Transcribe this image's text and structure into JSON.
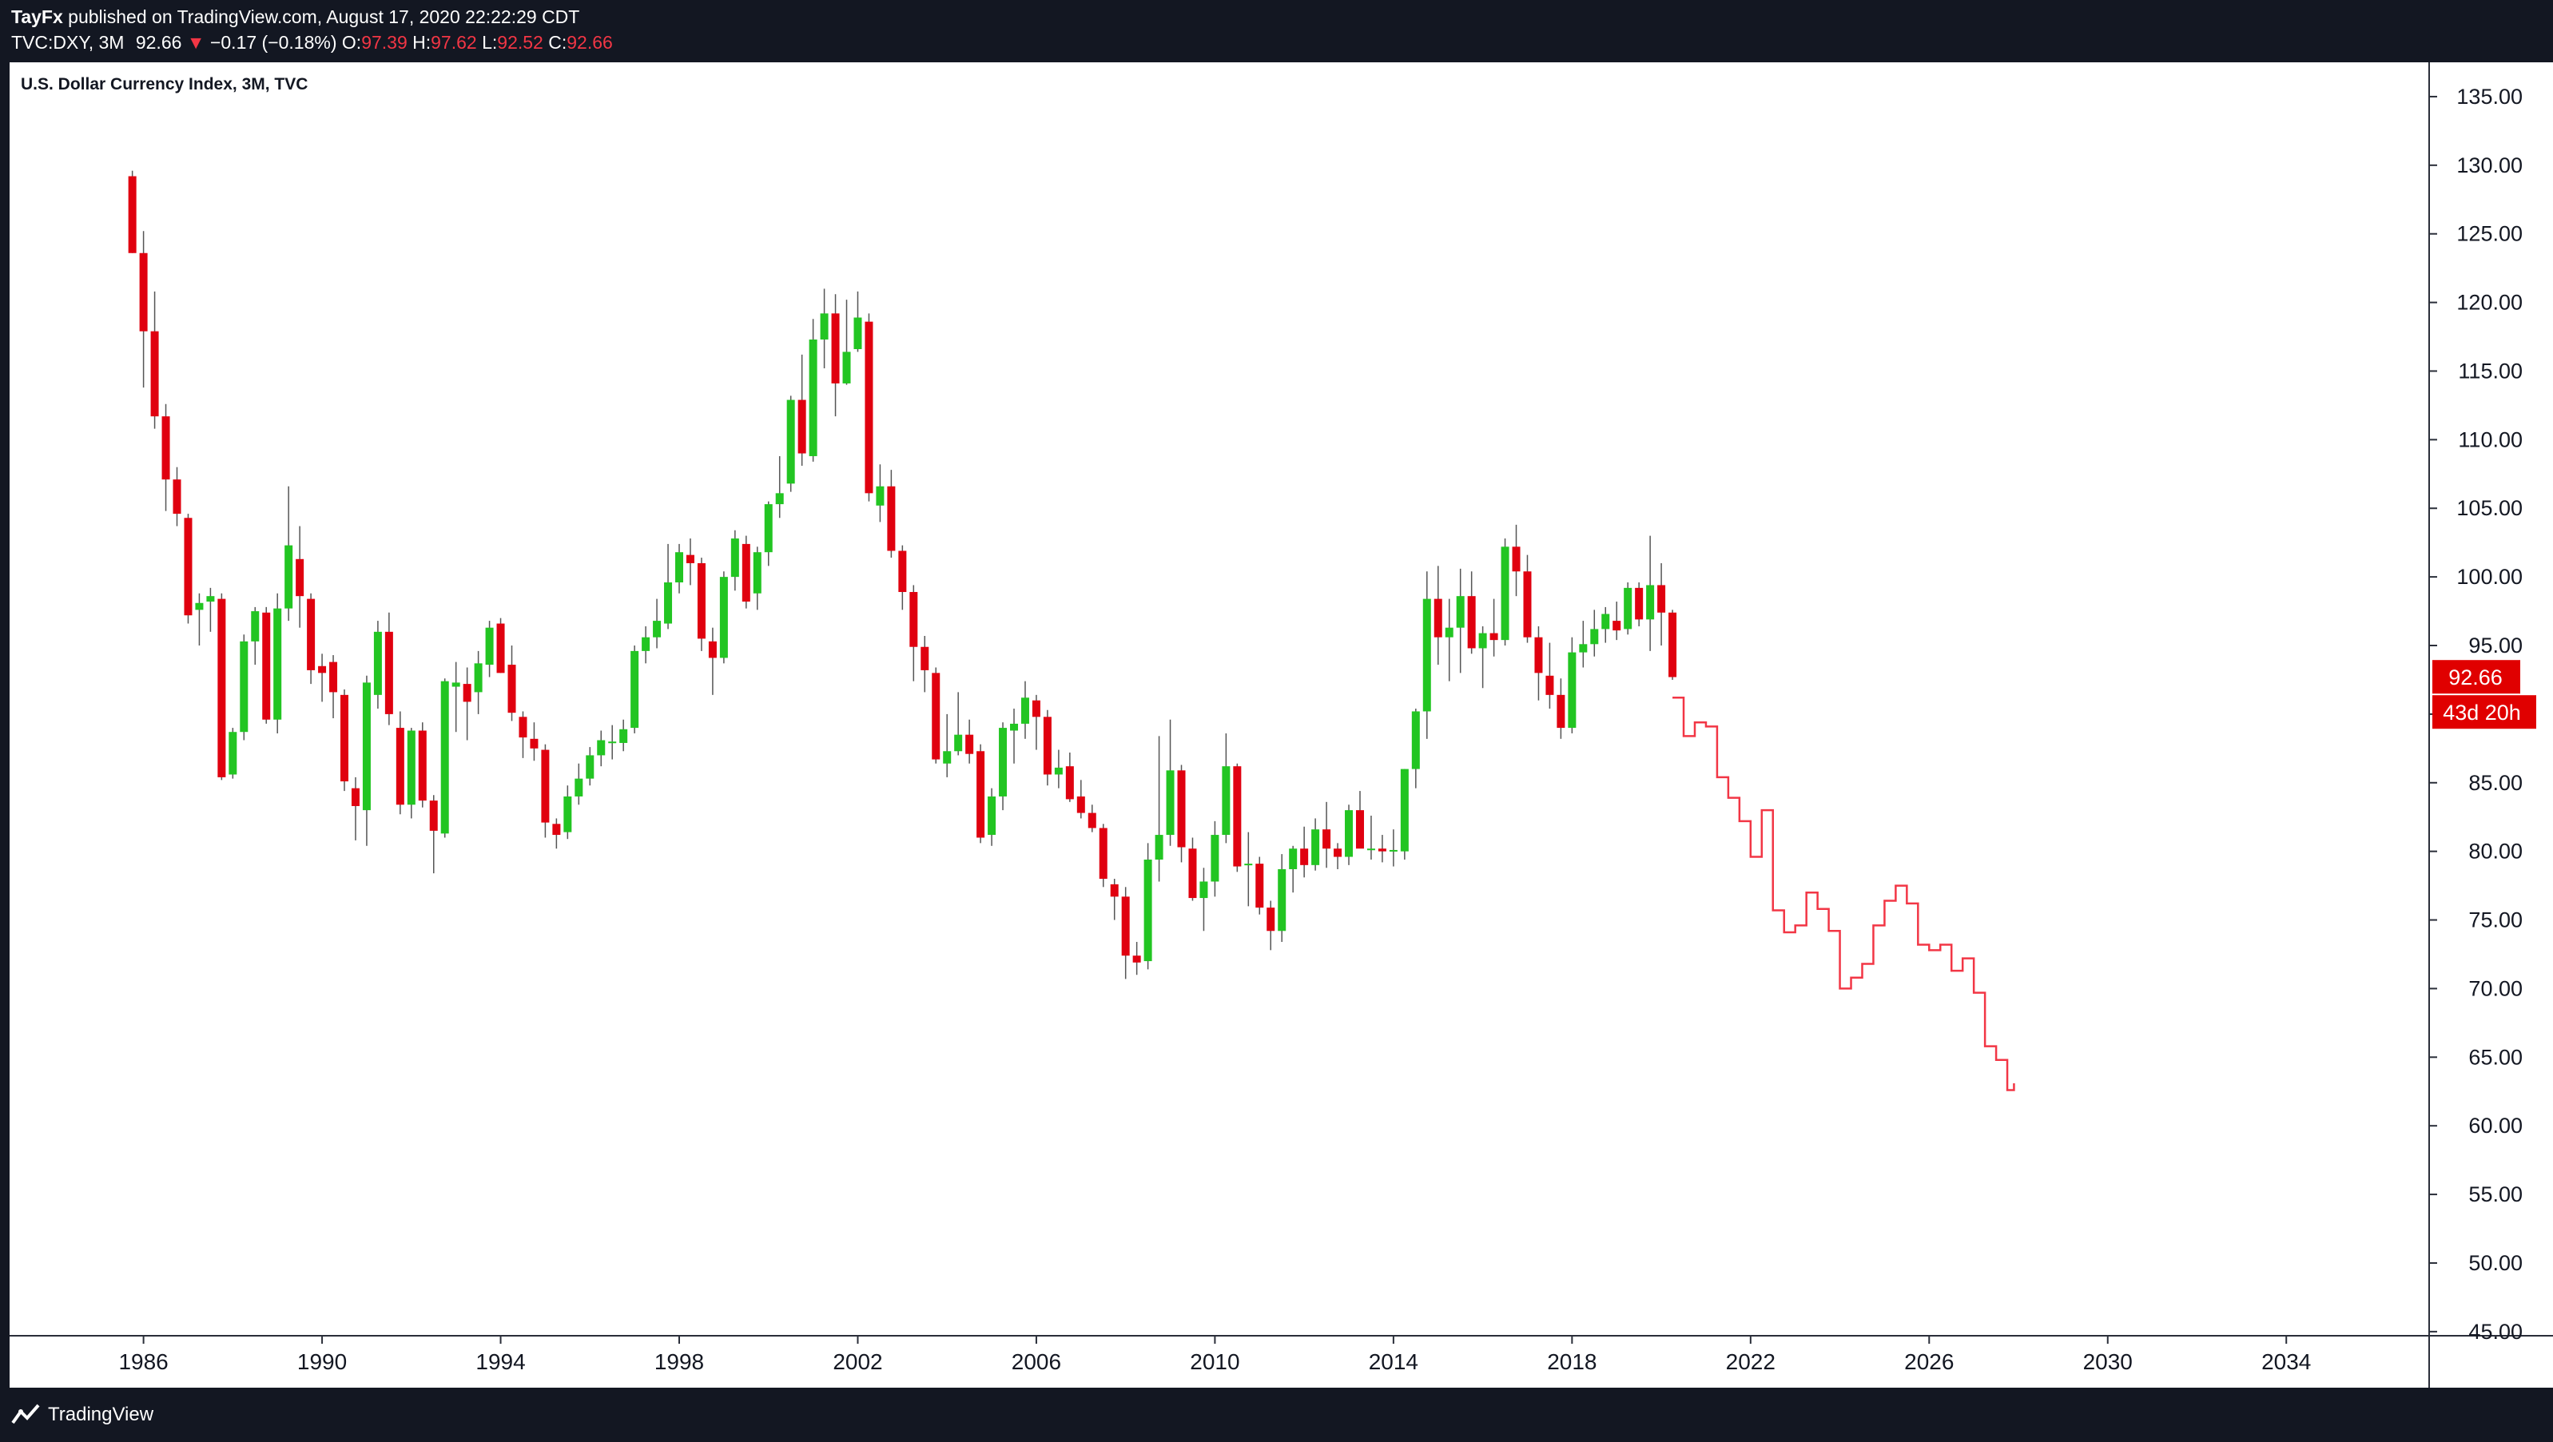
{
  "header": {
    "author": "TayFx",
    "published_text": "published on TradingView.com, August 17, 2020 22:22:29 CDT",
    "symbol": "TVC:DXY, 3M",
    "last": "92.66",
    "change": "−0.17 (−0.18%)",
    "open_label": "O:",
    "open": "97.39",
    "high_label": "H:",
    "high": "97.62",
    "low_label": "L:",
    "low": "92.52",
    "close_label": "C:",
    "close": "92.66"
  },
  "footer": {
    "brand": "TradingView"
  },
  "chart_data": {
    "type": "candlestick",
    "title": "U.S. Dollar Currency Index, 3M, TVC",
    "x_axis": {
      "ticks": [
        "1986",
        "1990",
        "1994",
        "1998",
        "2002",
        "2006",
        "2010",
        "2014",
        "2018",
        "2022",
        "2026",
        "2030",
        "2034"
      ],
      "range": [
        1983.0,
        2037.2
      ]
    },
    "y_axis": {
      "ticks": [
        "45.00",
        "50.00",
        "55.00",
        "60.00",
        "65.00",
        "70.00",
        "75.00",
        "80.00",
        "85.00",
        "90.00",
        "95.00",
        "100.00",
        "105.00",
        "110.00",
        "115.00",
        "120.00",
        "125.00",
        "130.00",
        "135.00"
      ],
      "range": [
        44.7,
        137.5
      ],
      "side": "right"
    },
    "price_label": "92.66",
    "countdown_label": "43d 20h",
    "colors": {
      "up": "#22c522",
      "down": "#e0000f",
      "projection": "#f23645",
      "wick": "#555555",
      "price_label_bg": "#e00000"
    },
    "candles": [
      {
        "t": 1985.75,
        "o": 129.2,
        "h": 129.6,
        "l": 123.6,
        "c": 123.6
      },
      {
        "t": 1986.0,
        "o": 123.6,
        "h": 125.2,
        "l": 113.8,
        "c": 117.9
      },
      {
        "t": 1986.25,
        "o": 117.9,
        "h": 120.8,
        "l": 110.8,
        "c": 111.7
      },
      {
        "t": 1986.5,
        "o": 111.7,
        "h": 112.6,
        "l": 104.8,
        "c": 107.1
      },
      {
        "t": 1986.75,
        "o": 107.1,
        "h": 108.0,
        "l": 103.7,
        "c": 104.6
      },
      {
        "t": 1987.0,
        "o": 104.3,
        "h": 104.6,
        "l": 96.6,
        "c": 97.2
      },
      {
        "t": 1987.25,
        "o": 97.6,
        "h": 98.8,
        "l": 95.0,
        "c": 98.1
      },
      {
        "t": 1987.5,
        "o": 98.2,
        "h": 99.2,
        "l": 96.0,
        "c": 98.6
      },
      {
        "t": 1987.75,
        "o": 98.4,
        "h": 98.8,
        "l": 85.2,
        "c": 85.4
      },
      {
        "t": 1988.0,
        "o": 85.6,
        "h": 89.0,
        "l": 85.3,
        "c": 88.7
      },
      {
        "t": 1988.25,
        "o": 88.7,
        "h": 95.8,
        "l": 88.1,
        "c": 95.3
      },
      {
        "t": 1988.5,
        "o": 95.3,
        "h": 97.8,
        "l": 93.6,
        "c": 97.5
      },
      {
        "t": 1988.75,
        "o": 97.4,
        "h": 97.8,
        "l": 89.3,
        "c": 89.6
      },
      {
        "t": 1989.0,
        "o": 89.6,
        "h": 98.8,
        "l": 88.6,
        "c": 97.7
      },
      {
        "t": 1989.25,
        "o": 97.7,
        "h": 106.6,
        "l": 96.8,
        "c": 102.3
      },
      {
        "t": 1989.5,
        "o": 101.3,
        "h": 103.7,
        "l": 96.3,
        "c": 98.6
      },
      {
        "t": 1989.75,
        "o": 98.4,
        "h": 98.8,
        "l": 92.2,
        "c": 93.2
      },
      {
        "t": 1990.0,
        "o": 93.5,
        "h": 94.4,
        "l": 90.9,
        "c": 93.0
      },
      {
        "t": 1990.25,
        "o": 93.8,
        "h": 94.3,
        "l": 89.7,
        "c": 91.6
      },
      {
        "t": 1990.5,
        "o": 91.4,
        "h": 91.8,
        "l": 84.4,
        "c": 85.1
      },
      {
        "t": 1990.75,
        "o": 84.6,
        "h": 85.4,
        "l": 80.8,
        "c": 83.3
      },
      {
        "t": 1991.0,
        "o": 83.0,
        "h": 92.8,
        "l": 80.4,
        "c": 92.3
      },
      {
        "t": 1991.25,
        "o": 91.4,
        "h": 96.8,
        "l": 90.4,
        "c": 96.0
      },
      {
        "t": 1991.5,
        "o": 96.0,
        "h": 97.4,
        "l": 89.2,
        "c": 90.0
      },
      {
        "t": 1991.75,
        "o": 89.0,
        "h": 90.2,
        "l": 82.7,
        "c": 83.4
      },
      {
        "t": 1992.0,
        "o": 83.4,
        "h": 89.0,
        "l": 82.4,
        "c": 88.8
      },
      {
        "t": 1992.25,
        "o": 88.8,
        "h": 89.4,
        "l": 83.2,
        "c": 83.7
      },
      {
        "t": 1992.5,
        "o": 83.7,
        "h": 84.1,
        "l": 78.4,
        "c": 81.5
      },
      {
        "t": 1992.75,
        "o": 81.3,
        "h": 92.6,
        "l": 81.0,
        "c": 92.4
      },
      {
        "t": 1993.0,
        "o": 92.0,
        "h": 93.8,
        "l": 88.7,
        "c": 92.3
      },
      {
        "t": 1993.25,
        "o": 92.2,
        "h": 93.4,
        "l": 88.1,
        "c": 90.9
      },
      {
        "t": 1993.5,
        "o": 91.6,
        "h": 94.6,
        "l": 90.0,
        "c": 93.7
      },
      {
        "t": 1993.75,
        "o": 93.6,
        "h": 96.8,
        "l": 92.7,
        "c": 96.3
      },
      {
        "t": 1994.0,
        "o": 96.6,
        "h": 97.0,
        "l": 93.0,
        "c": 93.0
      },
      {
        "t": 1994.25,
        "o": 93.6,
        "h": 95.0,
        "l": 89.5,
        "c": 90.1
      },
      {
        "t": 1994.5,
        "o": 89.8,
        "h": 90.2,
        "l": 86.8,
        "c": 88.3
      },
      {
        "t": 1994.75,
        "o": 88.2,
        "h": 89.4,
        "l": 86.6,
        "c": 87.5
      },
      {
        "t": 1995.0,
        "o": 87.4,
        "h": 87.8,
        "l": 81.0,
        "c": 82.1
      },
      {
        "t": 1995.25,
        "o": 82.0,
        "h": 82.4,
        "l": 80.2,
        "c": 81.2
      },
      {
        "t": 1995.5,
        "o": 81.4,
        "h": 84.8,
        "l": 80.9,
        "c": 84.0
      },
      {
        "t": 1995.75,
        "o": 84.0,
        "h": 86.4,
        "l": 83.4,
        "c": 85.3
      },
      {
        "t": 1996.0,
        "o": 85.3,
        "h": 87.6,
        "l": 84.8,
        "c": 87.0
      },
      {
        "t": 1996.25,
        "o": 87.0,
        "h": 88.8,
        "l": 86.2,
        "c": 88.1
      },
      {
        "t": 1996.5,
        "o": 87.9,
        "h": 89.2,
        "l": 86.7,
        "c": 88.0
      },
      {
        "t": 1996.75,
        "o": 87.9,
        "h": 89.6,
        "l": 87.3,
        "c": 88.9
      },
      {
        "t": 1997.0,
        "o": 89.0,
        "h": 95.0,
        "l": 88.6,
        "c": 94.6
      },
      {
        "t": 1997.25,
        "o": 94.6,
        "h": 96.4,
        "l": 93.7,
        "c": 95.6
      },
      {
        "t": 1997.5,
        "o": 95.6,
        "h": 98.4,
        "l": 94.8,
        "c": 96.8
      },
      {
        "t": 1997.75,
        "o": 96.6,
        "h": 102.4,
        "l": 96.2,
        "c": 99.6
      },
      {
        "t": 1998.0,
        "o": 99.6,
        "h": 102.4,
        "l": 98.8,
        "c": 101.8
      },
      {
        "t": 1998.25,
        "o": 101.6,
        "h": 102.8,
        "l": 99.4,
        "c": 101.0
      },
      {
        "t": 1998.5,
        "o": 101.0,
        "h": 101.4,
        "l": 94.6,
        "c": 95.5
      },
      {
        "t": 1998.75,
        "o": 95.3,
        "h": 96.3,
        "l": 91.4,
        "c": 94.1
      },
      {
        "t": 1999.0,
        "o": 94.1,
        "h": 100.4,
        "l": 93.7,
        "c": 100.0
      },
      {
        "t": 1999.25,
        "o": 100.0,
        "h": 103.4,
        "l": 99.0,
        "c": 102.8
      },
      {
        "t": 1999.5,
        "o": 102.4,
        "h": 103.0,
        "l": 97.7,
        "c": 98.2
      },
      {
        "t": 1999.75,
        "o": 98.8,
        "h": 102.2,
        "l": 97.6,
        "c": 101.8
      },
      {
        "t": 2000.0,
        "o": 101.8,
        "h": 105.5,
        "l": 100.8,
        "c": 105.3
      },
      {
        "t": 2000.25,
        "o": 105.3,
        "h": 108.8,
        "l": 104.3,
        "c": 106.1
      },
      {
        "t": 2000.5,
        "o": 106.8,
        "h": 113.2,
        "l": 106.2,
        "c": 112.9
      },
      {
        "t": 2000.75,
        "o": 112.9,
        "h": 116.2,
        "l": 108.1,
        "c": 109.0
      },
      {
        "t": 2001.0,
        "o": 108.8,
        "h": 118.8,
        "l": 108.4,
        "c": 117.3
      },
      {
        "t": 2001.25,
        "o": 117.3,
        "h": 121.0,
        "l": 115.2,
        "c": 119.2
      },
      {
        "t": 2001.5,
        "o": 119.2,
        "h": 120.6,
        "l": 111.7,
        "c": 114.1
      },
      {
        "t": 2001.75,
        "o": 114.1,
        "h": 120.2,
        "l": 114.0,
        "c": 116.4
      },
      {
        "t": 2002.0,
        "o": 116.6,
        "h": 120.8,
        "l": 116.4,
        "c": 118.9
      },
      {
        "t": 2002.25,
        "o": 118.6,
        "h": 119.2,
        "l": 105.5,
        "c": 106.1
      },
      {
        "t": 2002.5,
        "o": 105.2,
        "h": 108.2,
        "l": 104.0,
        "c": 106.6
      },
      {
        "t": 2002.75,
        "o": 106.6,
        "h": 107.8,
        "l": 101.4,
        "c": 101.9
      },
      {
        "t": 2003.0,
        "o": 101.9,
        "h": 102.3,
        "l": 97.6,
        "c": 98.9
      },
      {
        "t": 2003.25,
        "o": 98.9,
        "h": 99.4,
        "l": 92.4,
        "c": 94.9
      },
      {
        "t": 2003.5,
        "o": 94.9,
        "h": 95.7,
        "l": 91.6,
        "c": 93.2
      },
      {
        "t": 2003.75,
        "o": 93.0,
        "h": 93.4,
        "l": 86.4,
        "c": 86.7
      },
      {
        "t": 2004.0,
        "o": 86.4,
        "h": 90.0,
        "l": 85.4,
        "c": 87.3
      },
      {
        "t": 2004.25,
        "o": 87.3,
        "h": 91.6,
        "l": 87.0,
        "c": 88.5
      },
      {
        "t": 2004.5,
        "o": 88.5,
        "h": 89.6,
        "l": 86.4,
        "c": 87.1
      },
      {
        "t": 2004.75,
        "o": 87.3,
        "h": 87.8,
        "l": 80.6,
        "c": 81.0
      },
      {
        "t": 2005.0,
        "o": 81.2,
        "h": 84.6,
        "l": 80.4,
        "c": 84.0
      },
      {
        "t": 2005.25,
        "o": 84.0,
        "h": 89.4,
        "l": 83.0,
        "c": 89.0
      },
      {
        "t": 2005.5,
        "o": 88.8,
        "h": 90.4,
        "l": 86.4,
        "c": 89.3
      },
      {
        "t": 2005.75,
        "o": 89.3,
        "h": 92.4,
        "l": 88.2,
        "c": 91.2
      },
      {
        "t": 2006.0,
        "o": 91.0,
        "h": 91.4,
        "l": 87.4,
        "c": 89.8
      },
      {
        "t": 2006.25,
        "o": 89.8,
        "h": 90.3,
        "l": 84.8,
        "c": 85.6
      },
      {
        "t": 2006.5,
        "o": 85.6,
        "h": 87.4,
        "l": 84.6,
        "c": 86.1
      },
      {
        "t": 2006.75,
        "o": 86.2,
        "h": 87.2,
        "l": 83.6,
        "c": 83.8
      },
      {
        "t": 2007.0,
        "o": 84.0,
        "h": 85.2,
        "l": 82.4,
        "c": 82.8
      },
      {
        "t": 2007.25,
        "o": 82.8,
        "h": 83.4,
        "l": 81.4,
        "c": 81.7
      },
      {
        "t": 2007.5,
        "o": 81.7,
        "h": 82.0,
        "l": 77.4,
        "c": 78.0
      },
      {
        "t": 2007.75,
        "o": 77.6,
        "h": 78.0,
        "l": 75.0,
        "c": 76.7
      },
      {
        "t": 2008.0,
        "o": 76.7,
        "h": 77.4,
        "l": 70.7,
        "c": 72.4
      },
      {
        "t": 2008.25,
        "o": 72.4,
        "h": 73.4,
        "l": 71.0,
        "c": 71.9
      },
      {
        "t": 2008.5,
        "o": 72.0,
        "h": 80.6,
        "l": 71.4,
        "c": 79.4
      },
      {
        "t": 2008.75,
        "o": 79.4,
        "h": 88.4,
        "l": 77.8,
        "c": 81.2
      },
      {
        "t": 2009.0,
        "o": 81.2,
        "h": 89.6,
        "l": 80.4,
        "c": 85.9
      },
      {
        "t": 2009.25,
        "o": 85.9,
        "h": 86.3,
        "l": 79.2,
        "c": 80.3
      },
      {
        "t": 2009.5,
        "o": 80.2,
        "h": 81.0,
        "l": 76.4,
        "c": 76.6
      },
      {
        "t": 2009.75,
        "o": 76.6,
        "h": 78.8,
        "l": 74.2,
        "c": 77.8
      },
      {
        "t": 2010.0,
        "o": 77.8,
        "h": 82.2,
        "l": 76.7,
        "c": 81.2
      },
      {
        "t": 2010.25,
        "o": 81.2,
        "h": 88.6,
        "l": 80.6,
        "c": 86.2
      },
      {
        "t": 2010.5,
        "o": 86.2,
        "h": 86.4,
        "l": 78.5,
        "c": 78.9
      },
      {
        "t": 2010.75,
        "o": 79.0,
        "h": 81.4,
        "l": 76.0,
        "c": 79.1
      },
      {
        "t": 2011.0,
        "o": 79.1,
        "h": 79.6,
        "l": 75.4,
        "c": 75.9
      },
      {
        "t": 2011.25,
        "o": 75.9,
        "h": 76.4,
        "l": 72.8,
        "c": 74.2
      },
      {
        "t": 2011.5,
        "o": 74.2,
        "h": 79.8,
        "l": 73.4,
        "c": 78.7
      },
      {
        "t": 2011.75,
        "o": 78.7,
        "h": 80.4,
        "l": 77.0,
        "c": 80.2
      },
      {
        "t": 2012.0,
        "o": 80.2,
        "h": 81.8,
        "l": 78.1,
        "c": 79.0
      },
      {
        "t": 2012.25,
        "o": 79.0,
        "h": 82.4,
        "l": 78.6,
        "c": 81.6
      },
      {
        "t": 2012.5,
        "o": 81.6,
        "h": 83.6,
        "l": 78.8,
        "c": 80.2
      },
      {
        "t": 2012.75,
        "o": 80.2,
        "h": 80.6,
        "l": 78.7,
        "c": 79.6
      },
      {
        "t": 2013.0,
        "o": 79.6,
        "h": 83.4,
        "l": 79.0,
        "c": 83.0
      },
      {
        "t": 2013.25,
        "o": 83.0,
        "h": 84.4,
        "l": 80.8,
        "c": 80.2
      },
      {
        "t": 2013.5,
        "o": 80.2,
        "h": 82.6,
        "l": 79.4,
        "c": 80.2
      },
      {
        "t": 2013.75,
        "o": 80.2,
        "h": 81.2,
        "l": 79.2,
        "c": 80.0
      },
      {
        "t": 2014.0,
        "o": 80.0,
        "h": 81.6,
        "l": 78.9,
        "c": 80.1
      },
      {
        "t": 2014.25,
        "o": 80.0,
        "h": 86.0,
        "l": 79.4,
        "c": 86.0
      },
      {
        "t": 2014.5,
        "o": 86.0,
        "h": 90.4,
        "l": 84.6,
        "c": 90.2
      },
      {
        "t": 2014.75,
        "o": 90.2,
        "h": 100.4,
        "l": 88.2,
        "c": 98.4
      },
      {
        "t": 2015.0,
        "o": 98.4,
        "h": 100.8,
        "l": 93.6,
        "c": 95.6
      },
      {
        "t": 2015.25,
        "o": 95.6,
        "h": 98.4,
        "l": 92.4,
        "c": 96.3
      },
      {
        "t": 2015.5,
        "o": 96.3,
        "h": 100.6,
        "l": 93.0,
        "c": 98.6
      },
      {
        "t": 2015.75,
        "o": 98.6,
        "h": 100.4,
        "l": 94.4,
        "c": 94.8
      },
      {
        "t": 2016.0,
        "o": 94.8,
        "h": 96.4,
        "l": 91.9,
        "c": 95.9
      },
      {
        "t": 2016.25,
        "o": 95.9,
        "h": 98.4,
        "l": 94.2,
        "c": 95.4
      },
      {
        "t": 2016.5,
        "o": 95.4,
        "h": 102.8,
        "l": 95.0,
        "c": 102.2
      },
      {
        "t": 2016.75,
        "o": 102.2,
        "h": 103.8,
        "l": 98.6,
        "c": 100.4
      },
      {
        "t": 2017.0,
        "o": 100.4,
        "h": 101.6,
        "l": 95.2,
        "c": 95.6
      },
      {
        "t": 2017.25,
        "o": 95.6,
        "h": 96.4,
        "l": 91.0,
        "c": 93.0
      },
      {
        "t": 2017.5,
        "o": 92.8,
        "h": 95.2,
        "l": 90.4,
        "c": 91.4
      },
      {
        "t": 2017.75,
        "o": 91.4,
        "h": 92.6,
        "l": 88.2,
        "c": 89.0
      },
      {
        "t": 2018.0,
        "o": 89.0,
        "h": 95.6,
        "l": 88.6,
        "c": 94.5
      },
      {
        "t": 2018.25,
        "o": 94.5,
        "h": 96.8,
        "l": 93.4,
        "c": 95.1
      },
      {
        "t": 2018.5,
        "o": 95.1,
        "h": 97.6,
        "l": 94.2,
        "c": 96.2
      },
      {
        "t": 2018.75,
        "o": 96.2,
        "h": 97.8,
        "l": 95.2,
        "c": 97.3
      },
      {
        "t": 2019.0,
        "o": 96.8,
        "h": 98.2,
        "l": 95.4,
        "c": 96.1
      },
      {
        "t": 2019.25,
        "o": 96.2,
        "h": 99.6,
        "l": 95.8,
        "c": 99.2
      },
      {
        "t": 2019.5,
        "o": 99.2,
        "h": 99.6,
        "l": 96.4,
        "c": 96.9
      },
      {
        "t": 2019.75,
        "o": 96.9,
        "h": 103.0,
        "l": 94.6,
        "c": 99.4
      },
      {
        "t": 2020.0,
        "o": 99.4,
        "h": 101.0,
        "l": 95.0,
        "c": 97.4
      },
      {
        "t": 2020.25,
        "o": 97.4,
        "h": 97.6,
        "l": 92.5,
        "c": 92.7
      }
    ],
    "projection": [
      {
        "t": 2020.25,
        "v": 91.2
      },
      {
        "t": 2020.5,
        "v": 88.4
      },
      {
        "t": 2020.75,
        "v": 89.4
      },
      {
        "t": 2021.0,
        "v": 89.1
      },
      {
        "t": 2021.25,
        "v": 85.4
      },
      {
        "t": 2021.5,
        "v": 83.9
      },
      {
        "t": 2021.75,
        "v": 82.2
      },
      {
        "t": 2022.0,
        "v": 79.6
      },
      {
        "t": 2022.25,
        "v": 83.0
      },
      {
        "t": 2022.5,
        "v": 75.7
      },
      {
        "t": 2022.75,
        "v": 74.1
      },
      {
        "t": 2023.0,
        "v": 74.6
      },
      {
        "t": 2023.25,
        "v": 77.0
      },
      {
        "t": 2023.5,
        "v": 75.8
      },
      {
        "t": 2023.75,
        "v": 74.2
      },
      {
        "t": 2024.0,
        "v": 70.0
      },
      {
        "t": 2024.25,
        "v": 70.8
      },
      {
        "t": 2024.5,
        "v": 71.8
      },
      {
        "t": 2024.75,
        "v": 74.6
      },
      {
        "t": 2025.0,
        "v": 76.4
      },
      {
        "t": 2025.25,
        "v": 77.5
      },
      {
        "t": 2025.5,
        "v": 76.2
      },
      {
        "t": 2025.75,
        "v": 73.2
      },
      {
        "t": 2026.0,
        "v": 72.8
      },
      {
        "t": 2026.25,
        "v": 73.2
      },
      {
        "t": 2026.5,
        "v": 71.3
      },
      {
        "t": 2026.75,
        "v": 72.2
      },
      {
        "t": 2027.0,
        "v": 69.7
      },
      {
        "t": 2027.25,
        "v": 65.8
      },
      {
        "t": 2027.5,
        "v": 64.8
      },
      {
        "t": 2027.75,
        "v": 62.6
      },
      {
        "t": 2027.9,
        "v": 63.1
      }
    ]
  }
}
